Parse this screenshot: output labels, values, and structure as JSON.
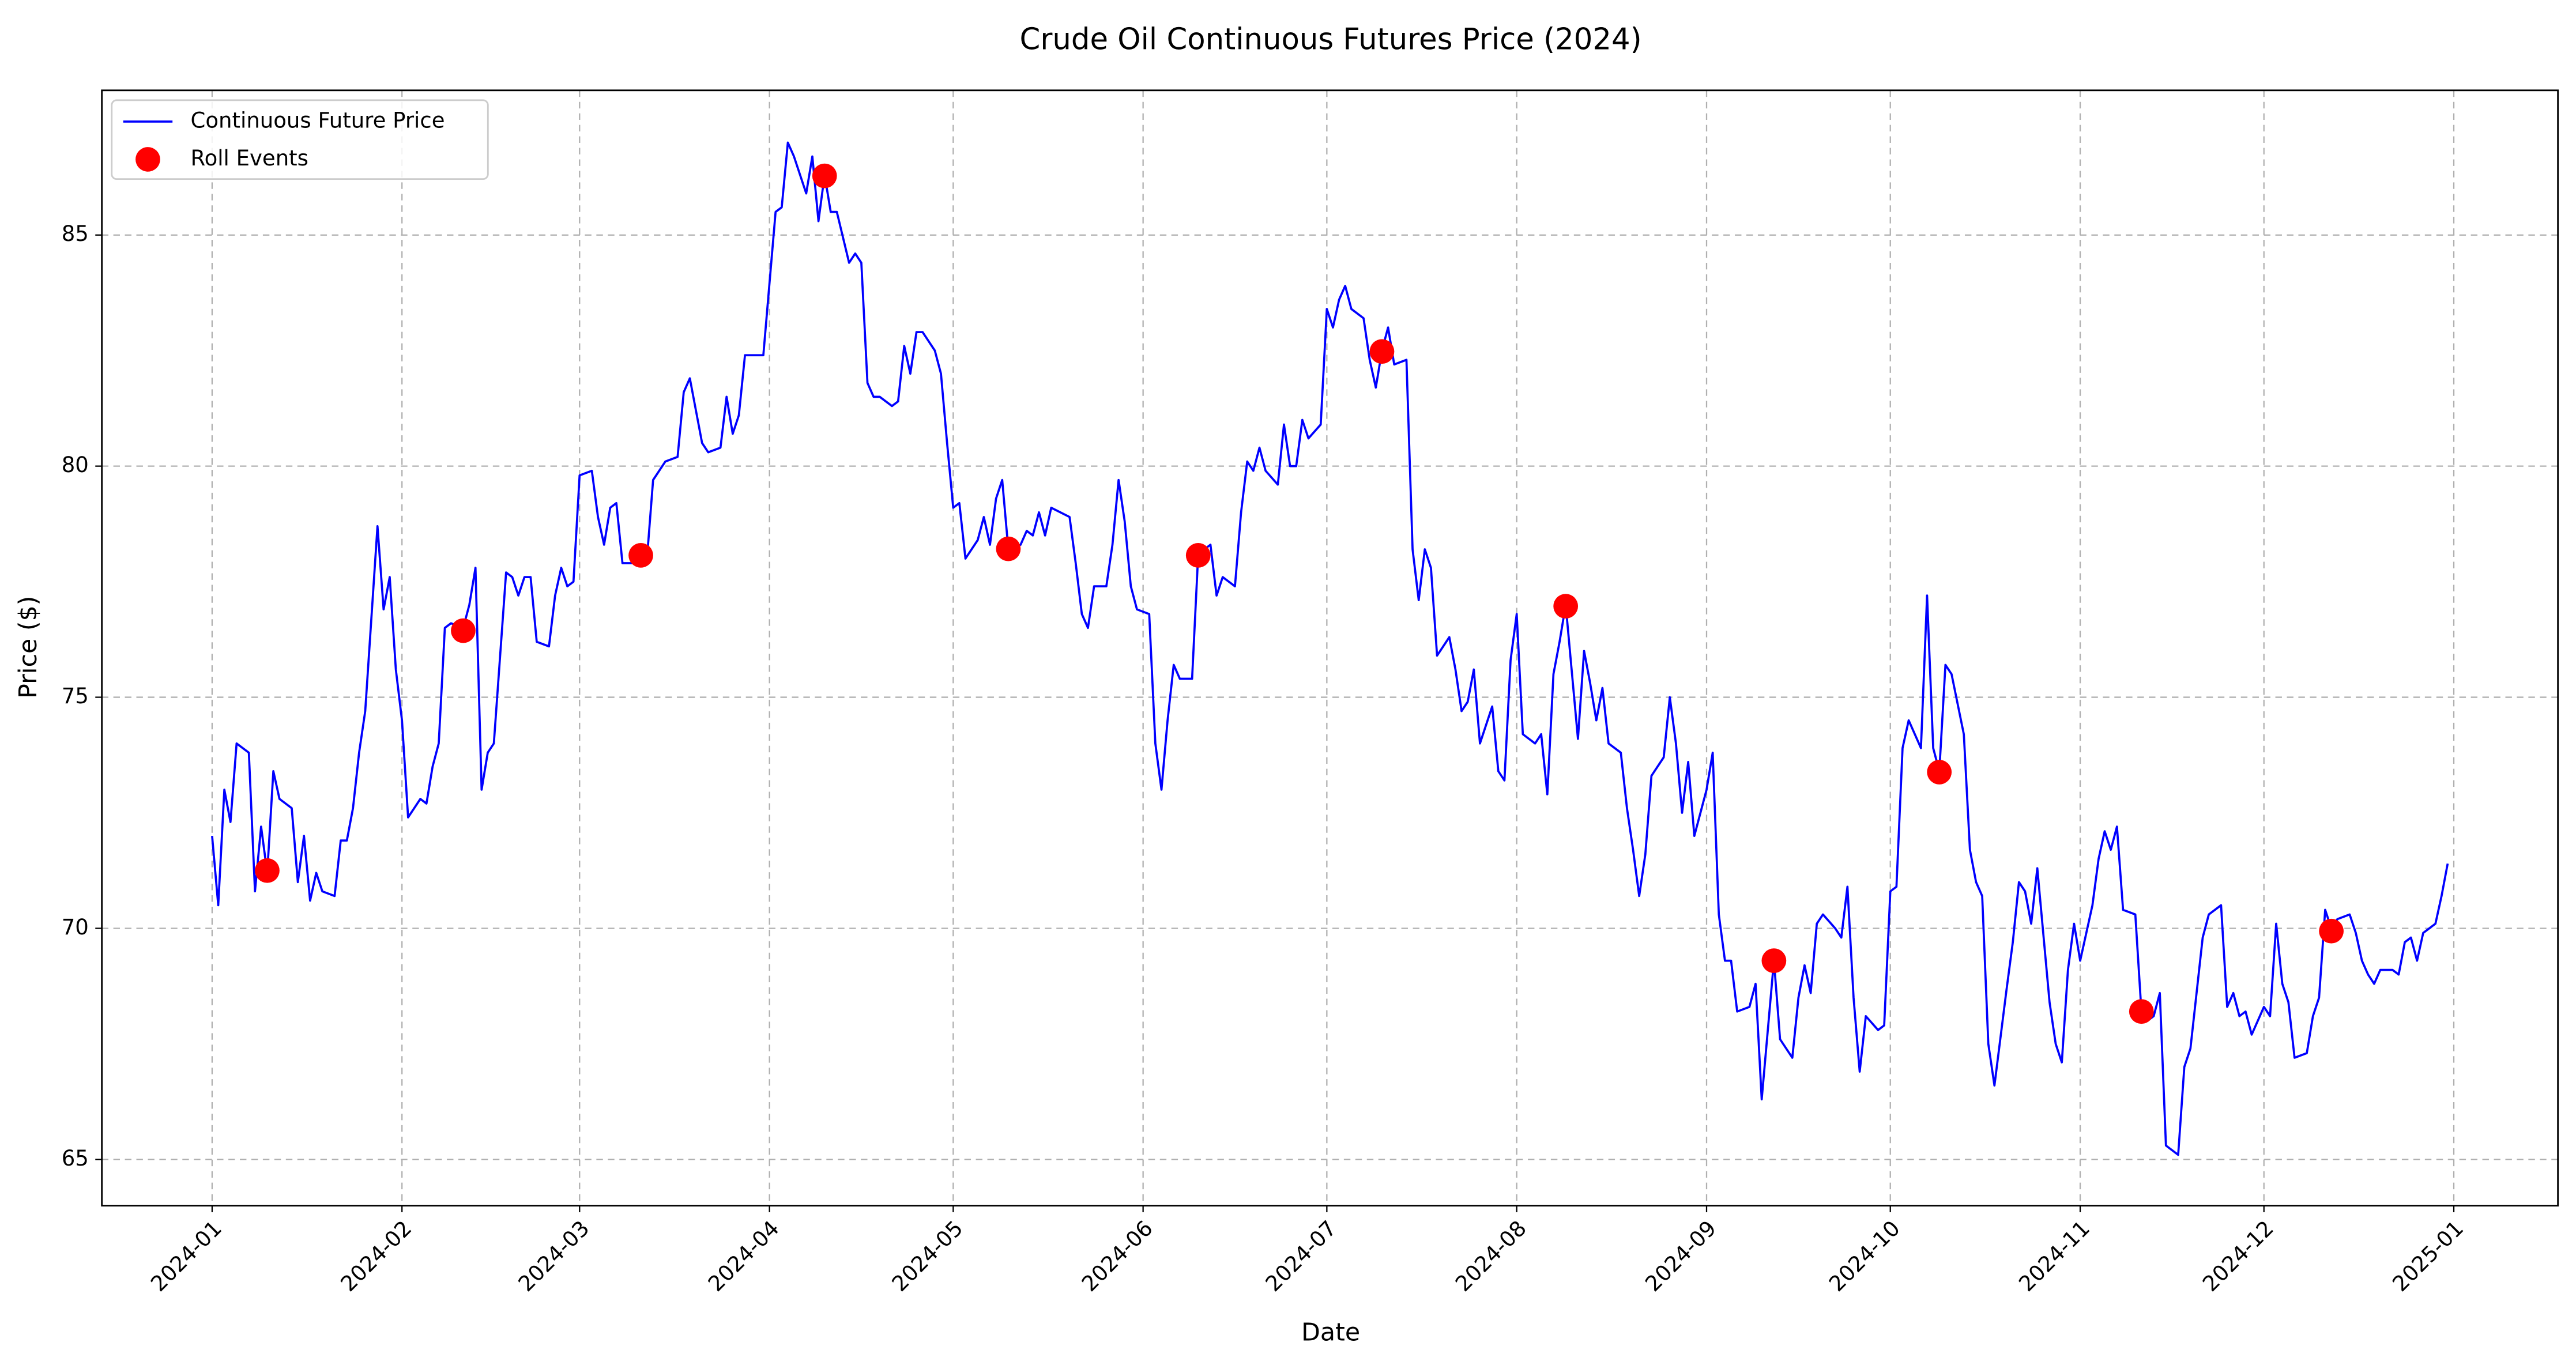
{
  "chart_data": {
    "type": "line",
    "title": "Crude Oil Continuous Futures Price (2024)",
    "x_label": "Date",
    "y_label": "Price ($)",
    "x": [
      "2024-01-01",
      "2024-01-02",
      "2024-01-03",
      "2024-01-04",
      "2024-01-05",
      "2024-01-07",
      "2024-01-08",
      "2024-01-09",
      "2024-01-10",
      "2024-01-11",
      "2024-01-12",
      "2024-01-14",
      "2024-01-15",
      "2024-01-16",
      "2024-01-17",
      "2024-01-18",
      "2024-01-19",
      "2024-01-21",
      "2024-01-22",
      "2024-01-23",
      "2024-01-24",
      "2024-01-25",
      "2024-01-26",
      "2024-01-28",
      "2024-01-29",
      "2024-01-30",
      "2024-01-31",
      "2024-02-01",
      "2024-02-02",
      "2024-02-04",
      "2024-02-05",
      "2024-02-06",
      "2024-02-07",
      "2024-02-08",
      "2024-02-09",
      "2024-02-11",
      "2024-02-12",
      "2024-02-13",
      "2024-02-14",
      "2024-02-15",
      "2024-02-16",
      "2024-02-18",
      "2024-02-19",
      "2024-02-20",
      "2024-02-21",
      "2024-02-22",
      "2024-02-23",
      "2024-02-25",
      "2024-02-26",
      "2024-02-27",
      "2024-02-28",
      "2024-02-29",
      "2024-03-01",
      "2024-03-03",
      "2024-03-04",
      "2024-03-05",
      "2024-03-06",
      "2024-03-07",
      "2024-03-08",
      "2024-03-10",
      "2024-03-11",
      "2024-03-12",
      "2024-03-13",
      "2024-03-15",
      "2024-03-17",
      "2024-03-18",
      "2024-03-19",
      "2024-03-20",
      "2024-03-21",
      "2024-03-22",
      "2024-03-24",
      "2024-03-25",
      "2024-03-26",
      "2024-03-27",
      "2024-03-28",
      "2024-03-31",
      "2024-04-02",
      "2024-04-03",
      "2024-04-04",
      "2024-04-05",
      "2024-04-07",
      "2024-04-08",
      "2024-04-09",
      "2024-04-10",
      "2024-04-11",
      "2024-04-12",
      "2024-04-14",
      "2024-04-15",
      "2024-04-16",
      "2024-04-17",
      "2024-04-18",
      "2024-04-19",
      "2024-04-21",
      "2024-04-22",
      "2024-04-23",
      "2024-04-24",
      "2024-04-25",
      "2024-04-26",
      "2024-04-28",
      "2024-04-29",
      "2024-04-30",
      "2024-05-01",
      "2024-05-02",
      "2024-05-03",
      "2024-05-05",
      "2024-05-06",
      "2024-05-07",
      "2024-05-08",
      "2024-05-09",
      "2024-05-10",
      "2024-05-12",
      "2024-05-13",
      "2024-05-14",
      "2024-05-15",
      "2024-05-16",
      "2024-05-17",
      "2024-05-20",
      "2024-05-21",
      "2024-05-22",
      "2024-05-23",
      "2024-05-24",
      "2024-05-26",
      "2024-05-27",
      "2024-05-28",
      "2024-05-29",
      "2024-05-30",
      "2024-05-31",
      "2024-06-02",
      "2024-06-03",
      "2024-06-04",
      "2024-06-05",
      "2024-06-06",
      "2024-06-07",
      "2024-06-09",
      "2024-06-10",
      "2024-06-12",
      "2024-06-13",
      "2024-06-14",
      "2024-06-16",
      "2024-06-17",
      "2024-06-18",
      "2024-06-19",
      "2024-06-20",
      "2024-06-21",
      "2024-06-23",
      "2024-06-24",
      "2024-06-25",
      "2024-06-26",
      "2024-06-27",
      "2024-06-28",
      "2024-06-30",
      "2024-07-01",
      "2024-07-02",
      "2024-07-03",
      "2024-07-04",
      "2024-07-05",
      "2024-07-07",
      "2024-07-08",
      "2024-07-09",
      "2024-07-10",
      "2024-07-11",
      "2024-07-12",
      "2024-07-14",
      "2024-07-15",
      "2024-07-16",
      "2024-07-17",
      "2024-07-18",
      "2024-07-19",
      "2024-07-21",
      "2024-07-22",
      "2024-07-23",
      "2024-07-24",
      "2024-07-25",
      "2024-07-26",
      "2024-07-28",
      "2024-07-29",
      "2024-07-30",
      "2024-07-31",
      "2024-08-01",
      "2024-08-02",
      "2024-08-04",
      "2024-08-05",
      "2024-08-06",
      "2024-08-07",
      "2024-08-08",
      "2024-08-09",
      "2024-08-11",
      "2024-08-12",
      "2024-08-13",
      "2024-08-14",
      "2024-08-15",
      "2024-08-16",
      "2024-08-18",
      "2024-08-19",
      "2024-08-20",
      "2024-08-21",
      "2024-08-22",
      "2024-08-23",
      "2024-08-25",
      "2024-08-26",
      "2024-08-27",
      "2024-08-28",
      "2024-08-29",
      "2024-08-30",
      "2024-09-01",
      "2024-09-02",
      "2024-09-03",
      "2024-09-04",
      "2024-09-05",
      "2024-09-06",
      "2024-09-08",
      "2024-09-09",
      "2024-09-10",
      "2024-09-12",
      "2024-09-13",
      "2024-09-15",
      "2024-09-16",
      "2024-09-17",
      "2024-09-18",
      "2024-09-19",
      "2024-09-20",
      "2024-09-22",
      "2024-09-23",
      "2024-09-24",
      "2024-09-25",
      "2024-09-26",
      "2024-09-27",
      "2024-09-29",
      "2024-09-30",
      "2024-10-01",
      "2024-10-02",
      "2024-10-03",
      "2024-10-04",
      "2024-10-06",
      "2024-10-07",
      "2024-10-08",
      "2024-10-09",
      "2024-10-10",
      "2024-10-11",
      "2024-10-13",
      "2024-10-14",
      "2024-10-15",
      "2024-10-16",
      "2024-10-17",
      "2024-10-18",
      "2024-10-20",
      "2024-10-21",
      "2024-10-22",
      "2024-10-23",
      "2024-10-24",
      "2024-10-25",
      "2024-10-27",
      "2024-10-28",
      "2024-10-29",
      "2024-10-30",
      "2024-10-31",
      "2024-11-01",
      "2024-11-03",
      "2024-11-04",
      "2024-11-05",
      "2024-11-06",
      "2024-11-07",
      "2024-11-08",
      "2024-11-10",
      "2024-11-11",
      "2024-11-12",
      "2024-11-13",
      "2024-11-14",
      "2024-11-15",
      "2024-11-17",
      "2024-11-18",
      "2024-11-19",
      "2024-11-20",
      "2024-11-21",
      "2024-11-22",
      "2024-11-24",
      "2024-11-25",
      "2024-11-26",
      "2024-11-27",
      "2024-11-28",
      "2024-11-29",
      "2024-12-01",
      "2024-12-02",
      "2024-12-03",
      "2024-12-04",
      "2024-12-05",
      "2024-12-06",
      "2024-12-08",
      "2024-12-09",
      "2024-12-10",
      "2024-12-11",
      "2024-12-12",
      "2024-12-13",
      "2024-12-15",
      "2024-12-16",
      "2024-12-17",
      "2024-12-18",
      "2024-12-19",
      "2024-12-20",
      "2024-12-22",
      "2024-12-23",
      "2024-12-24",
      "2024-12-25",
      "2024-12-26",
      "2024-12-27",
      "2024-12-29",
      "2024-12-30",
      "2024-12-31"
    ],
    "series": [
      {
        "name": "Continuous Future Price",
        "color": "#0000ff",
        "values": [
          72.0,
          70.5,
          73.0,
          72.3,
          74.0,
          73.8,
          70.8,
          72.2,
          71.2,
          73.4,
          72.8,
          72.6,
          71.0,
          72.0,
          70.6,
          71.2,
          70.8,
          70.7,
          71.9,
          71.9,
          72.6,
          73.8,
          74.7,
          78.7,
          76.9,
          77.6,
          75.6,
          74.5,
          72.4,
          72.8,
          72.7,
          73.5,
          74.0,
          76.5,
          76.6,
          76.5,
          77.0,
          77.8,
          73.0,
          73.8,
          74.0,
          77.7,
          77.6,
          77.2,
          77.6,
          77.6,
          76.2,
          76.1,
          77.2,
          77.8,
          77.4,
          77.5,
          79.8,
          79.9,
          78.9,
          78.3,
          79.1,
          79.2,
          77.9,
          77.9,
          78.1,
          78.0,
          79.7,
          80.1,
          80.2,
          81.6,
          81.9,
          81.2,
          80.5,
          80.3,
          80.4,
          81.5,
          80.7,
          81.1,
          82.4,
          82.4,
          85.5,
          85.6,
          87.0,
          86.7,
          85.9,
          86.7,
          85.3,
          86.3,
          85.5,
          85.5,
          84.4,
          84.6,
          84.4,
          81.8,
          81.5,
          81.5,
          81.3,
          81.4,
          82.6,
          82.0,
          82.9,
          82.9,
          82.5,
          82.0,
          80.5,
          79.1,
          79.2,
          78.0,
          78.4,
          78.9,
          78.3,
          79.3,
          79.7,
          78.2,
          78.3,
          78.6,
          78.5,
          79.0,
          78.5,
          79.1,
          78.9,
          77.9,
          76.8,
          76.5,
          77.4,
          77.4,
          78.3,
          79.7,
          78.8,
          77.4,
          76.9,
          76.8,
          74.0,
          73.0,
          74.5,
          75.7,
          75.4,
          75.4,
          78.1,
          78.3,
          77.2,
          77.6,
          77.4,
          79.0,
          80.1,
          79.9,
          80.4,
          79.9,
          79.6,
          80.9,
          80.0,
          80.0,
          81.0,
          80.6,
          80.9,
          83.4,
          83.0,
          83.6,
          83.9,
          83.4,
          83.2,
          82.3,
          81.7,
          82.5,
          83.0,
          82.2,
          82.3,
          78.2,
          77.1,
          78.2,
          77.8,
          75.9,
          76.3,
          75.6,
          74.7,
          74.9,
          75.6,
          74.0,
          74.8,
          73.4,
          73.2,
          75.8,
          76.8,
          74.2,
          74.0,
          74.2,
          72.9,
          75.5,
          76.2,
          77.0,
          74.1,
          76.0,
          75.3,
          74.5,
          75.2,
          74.0,
          73.8,
          72.6,
          71.7,
          70.7,
          71.6,
          73.3,
          73.7,
          75.0,
          74.0,
          72.5,
          73.6,
          72.0,
          73.0,
          73.8,
          70.3,
          69.3,
          69.3,
          68.2,
          68.3,
          68.8,
          66.3,
          69.3,
          67.6,
          67.2,
          68.5,
          69.2,
          68.6,
          70.1,
          70.3,
          70.0,
          69.8,
          70.9,
          68.5,
          66.9,
          68.1,
          67.8,
          67.9,
          70.8,
          70.9,
          73.9,
          74.5,
          73.9,
          77.2,
          73.9,
          73.4,
          75.7,
          75.5,
          74.2,
          71.7,
          71.0,
          70.7,
          67.5,
          66.6,
          68.7,
          69.7,
          71.0,
          70.8,
          70.1,
          71.3,
          68.4,
          67.5,
          67.1,
          69.1,
          70.1,
          69.3,
          70.5,
          71.5,
          72.1,
          71.7,
          72.2,
          70.4,
          70.3,
          68.2,
          68.0,
          68.1,
          68.6,
          65.3,
          65.1,
          67.0,
          67.4,
          68.6,
          69.8,
          70.3,
          70.5,
          68.3,
          68.6,
          68.1,
          68.2,
          67.7,
          68.3,
          68.1,
          70.1,
          68.8,
          68.4,
          67.2,
          67.3,
          68.1,
          68.5,
          70.4,
          70.0,
          70.2,
          70.3,
          69.9,
          69.3,
          69.0,
          68.8,
          69.1,
          69.1,
          69.0,
          69.7,
          69.8,
          69.3,
          69.9,
          70.1,
          70.7,
          71.4
        ]
      },
      {
        "name": "Roll Events",
        "type": "scatter",
        "color": "#ff0000",
        "x": [
          "2024-01-10",
          "2024-02-11",
          "2024-03-11",
          "2024-04-10",
          "2024-05-10",
          "2024-06-10",
          "2024-07-10",
          "2024-08-09",
          "2024-09-12",
          "2024-10-09",
          "2024-11-11",
          "2024-12-12"
        ],
        "values": [
          71.25,
          76.44,
          78.07,
          86.28,
          78.21,
          78.07,
          82.48,
          76.97,
          69.3,
          73.38,
          68.2,
          69.94
        ]
      }
    ],
    "xlim": [
      "2023-12-14",
      "2025-01-18"
    ],
    "xticks": [
      {
        "value": "2024-01-01",
        "label": "2024-01"
      },
      {
        "value": "2024-02-01",
        "label": "2024-02"
      },
      {
        "value": "2024-03-01",
        "label": "2024-03"
      },
      {
        "value": "2024-04-01",
        "label": "2024-04"
      },
      {
        "value": "2024-05-01",
        "label": "2024-05"
      },
      {
        "value": "2024-06-01",
        "label": "2024-06"
      },
      {
        "value": "2024-07-01",
        "label": "2024-07"
      },
      {
        "value": "2024-08-01",
        "label": "2024-08"
      },
      {
        "value": "2024-09-01",
        "label": "2024-09"
      },
      {
        "value": "2024-10-01",
        "label": "2024-10"
      },
      {
        "value": "2024-11-01",
        "label": "2024-11"
      },
      {
        "value": "2024-12-01",
        "label": "2024-12"
      },
      {
        "value": "2025-01-01",
        "label": "2025-01"
      }
    ],
    "ylim": [
      64.0,
      88.13
    ],
    "yticks": [
      65,
      70,
      75,
      80,
      85
    ],
    "grid": true,
    "legend": "upper left"
  }
}
